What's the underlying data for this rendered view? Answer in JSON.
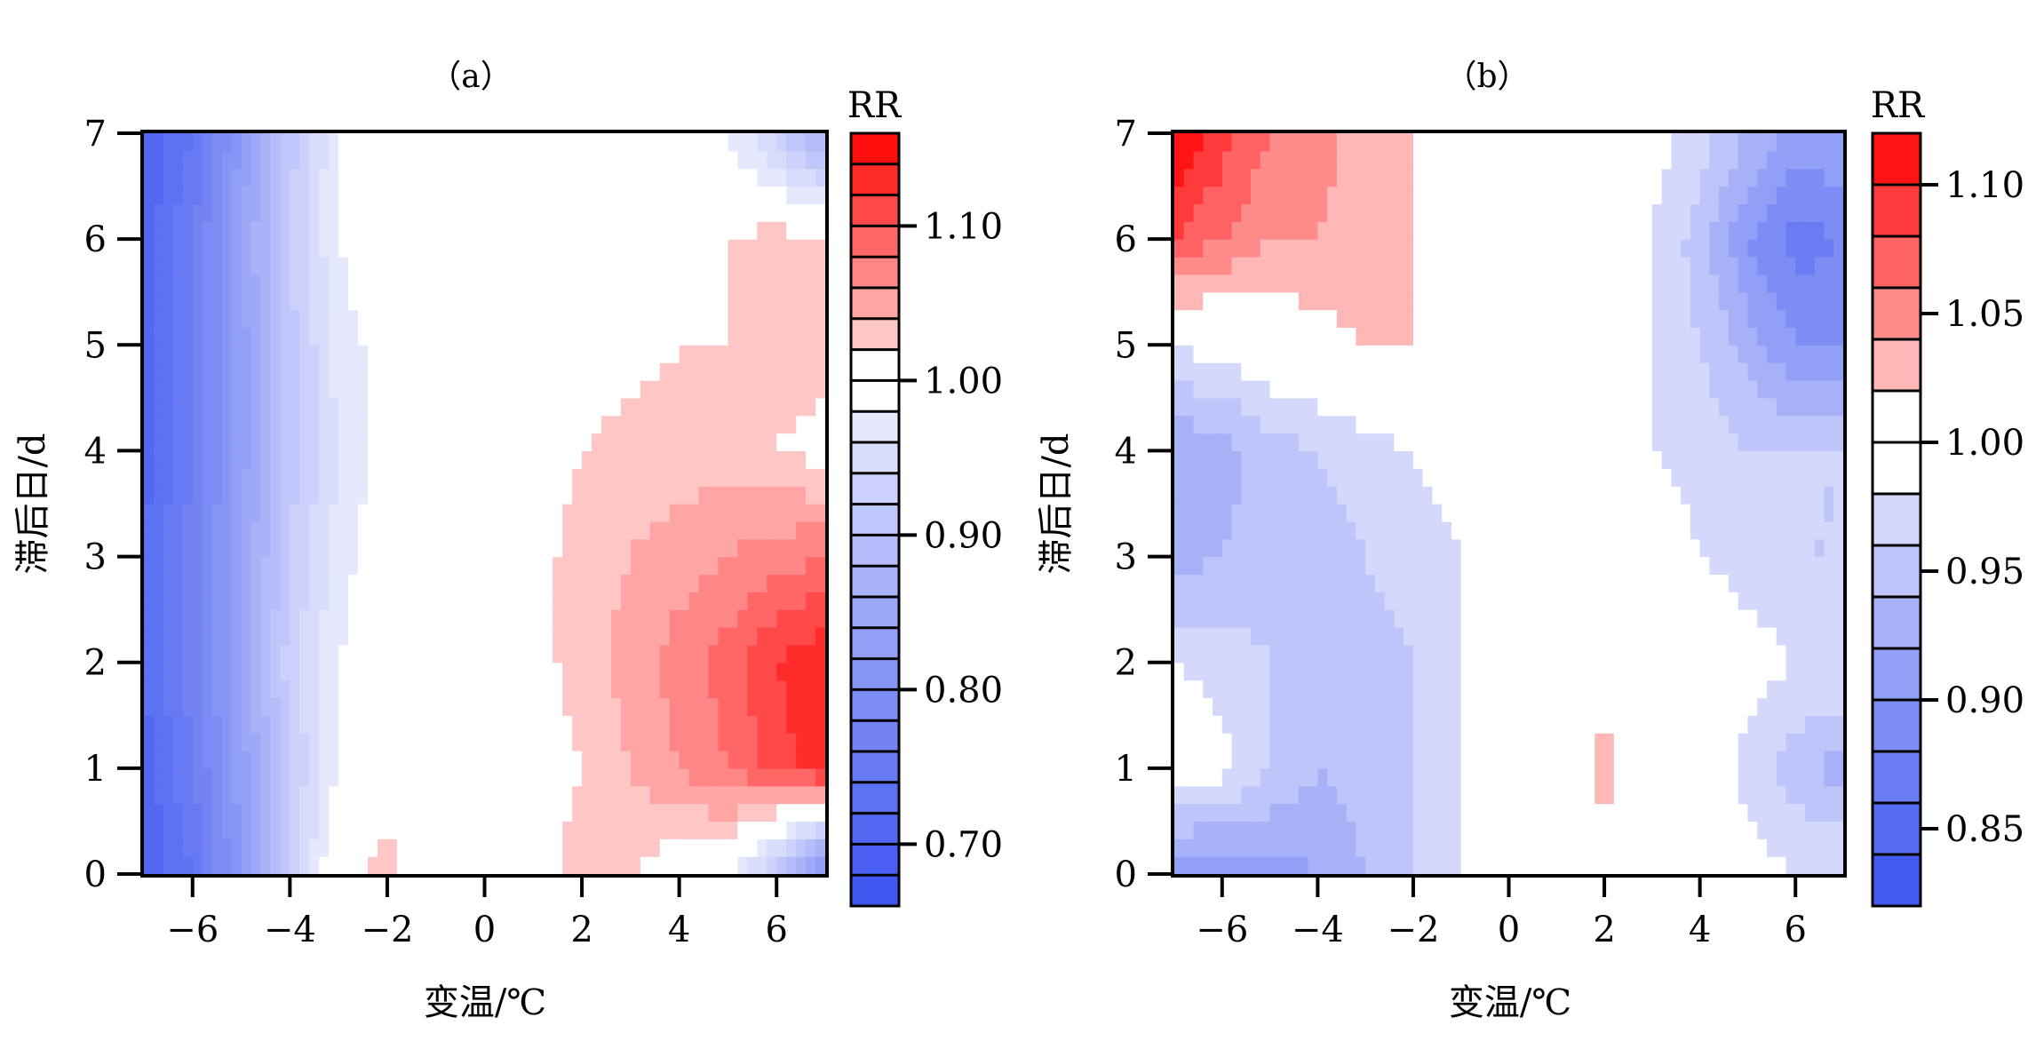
{
  "chart_data": [
    {
      "type": "heatmap",
      "title": "（a）",
      "xlabel": "变温/℃",
      "ylabel": "滞后日/d",
      "xlim": [
        -7,
        7
      ],
      "ylim": [
        0,
        7
      ],
      "xticks": [
        -6,
        -4,
        -2,
        0,
        2,
        4,
        6
      ],
      "xtick_labels": [
        "−6",
        "−4",
        "−2",
        "0",
        "2",
        "4",
        "6"
      ],
      "yticks": [
        0,
        1,
        2,
        3,
        4,
        5,
        6,
        7
      ],
      "ytick_labels": [
        "0",
        "1",
        "2",
        "3",
        "4",
        "5",
        "6",
        "7"
      ],
      "x": [
        -7,
        -6,
        -5,
        -4,
        -3,
        -2,
        -1,
        0,
        1,
        2,
        3,
        4,
        5,
        6,
        7
      ],
      "y": [
        0,
        1,
        2,
        3,
        4,
        5,
        6,
        7
      ],
      "z": [
        [
          0.7,
          0.74,
          0.82,
          0.92,
          1.01,
          1.03,
          1.0,
          1.0,
          1.01,
          1.03,
          1.02,
          1.0,
          0.99,
          0.9,
          0.78
        ],
        [
          0.71,
          0.76,
          0.83,
          0.92,
          0.98,
          1.0,
          1.0,
          1.0,
          1.01,
          1.02,
          1.04,
          1.06,
          1.08,
          1.11,
          1.13
        ],
        [
          0.72,
          0.77,
          0.84,
          0.93,
          0.98,
          1.0,
          1.0,
          1.0,
          1.01,
          1.03,
          1.05,
          1.07,
          1.09,
          1.12,
          1.14
        ],
        [
          0.72,
          0.77,
          0.84,
          0.92,
          0.97,
          1.0,
          1.0,
          1.0,
          1.01,
          1.03,
          1.04,
          1.05,
          1.06,
          1.07,
          1.08
        ],
        [
          0.71,
          0.76,
          0.83,
          0.91,
          0.96,
          0.99,
          1.0,
          1.0,
          1.01,
          1.02,
          1.03,
          1.03,
          1.03,
          1.02,
          1.01
        ],
        [
          0.71,
          0.76,
          0.83,
          0.91,
          0.97,
          0.99,
          1.0,
          1.0,
          1.0,
          1.0,
          1.01,
          1.02,
          1.02,
          1.03,
          1.03
        ],
        [
          0.71,
          0.76,
          0.84,
          0.92,
          0.98,
          1.0,
          1.0,
          1.0,
          1.0,
          0.99,
          1.0,
          1.01,
          1.02,
          1.03,
          1.03
        ],
        [
          0.7,
          0.74,
          0.82,
          0.91,
          0.98,
          1.0,
          1.0,
          1.0,
          1.01,
          1.02,
          1.0,
          1.0,
          0.98,
          0.93,
          0.86
        ]
      ],
      "colorbar": {
        "label": "RR",
        "ticks": [
          0.7,
          0.8,
          0.9,
          1.0,
          1.1
        ],
        "tick_labels": [
          "0.70",
          "0.80",
          "0.90",
          "1.00",
          "1.10"
        ],
        "levels": [
          0.66,
          0.68,
          0.7,
          0.72,
          0.74,
          0.76,
          0.78,
          0.8,
          0.82,
          0.84,
          0.86,
          0.88,
          0.9,
          0.92,
          0.94,
          0.96,
          0.98,
          1.0,
          1.02,
          1.04,
          1.06,
          1.08,
          1.1,
          1.12,
          1.14,
          1.16
        ],
        "low_color": "#3a52f0",
        "mid_color": "#ffffff",
        "high_color": "#ff0000",
        "mid_value": 1.0,
        "vmin": 0.66,
        "vmax": 1.16
      }
    },
    {
      "type": "heatmap",
      "title": "（b）",
      "xlabel": "变温/℃",
      "ylabel": "滞后日/d",
      "xlim": [
        -7,
        7
      ],
      "ylim": [
        0,
        7
      ],
      "xticks": [
        -6,
        -4,
        -2,
        0,
        2,
        4,
        6
      ],
      "xtick_labels": [
        "−6",
        "−4",
        "−2",
        "0",
        "2",
        "4",
        "6"
      ],
      "yticks": [
        0,
        1,
        2,
        3,
        4,
        5,
        6,
        7
      ],
      "ytick_labels": [
        "0",
        "1",
        "2",
        "3",
        "4",
        "5",
        "6",
        "7"
      ],
      "x": [
        -7,
        -6,
        -5,
        -4,
        -3,
        -2,
        -1,
        0,
        1,
        2,
        3,
        4,
        5,
        6,
        7
      ],
      "y": [
        0,
        1,
        2,
        3,
        4,
        5,
        6,
        7
      ],
      "z": [
        [
          0.9,
          0.9,
          0.91,
          0.92,
          0.94,
          0.96,
          0.98,
          1.0,
          1.0,
          1.0,
          1.0,
          1.0,
          0.99,
          0.98,
          0.98
        ],
        [
          1.0,
          0.99,
          0.96,
          0.94,
          0.95,
          0.96,
          0.98,
          1.0,
          1.0,
          1.03,
          1.0,
          1.0,
          0.97,
          0.95,
          0.93
        ],
        [
          0.98,
          0.97,
          0.96,
          0.95,
          0.95,
          0.96,
          0.98,
          1.0,
          1.0,
          1.0,
          1.0,
          1.0,
          0.99,
          0.98,
          0.98
        ],
        [
          0.93,
          0.94,
          0.95,
          0.95,
          0.96,
          0.97,
          0.98,
          1.0,
          1.0,
          1.0,
          1.0,
          0.98,
          0.97,
          0.96,
          0.96
        ],
        [
          0.92,
          0.93,
          0.95,
          0.96,
          0.97,
          0.98,
          0.99,
          1.0,
          1.0,
          1.0,
          0.98,
          0.97,
          0.96,
          0.96,
          0.96
        ],
        [
          0.98,
          0.99,
          1.0,
          1.01,
          1.02,
          1.02,
          1.01,
          1.0,
          1.0,
          1.0,
          0.98,
          0.96,
          0.93,
          0.9,
          0.9
        ],
        [
          1.08,
          1.06,
          1.04,
          1.04,
          1.03,
          1.02,
          1.01,
          1.0,
          1.0,
          1.0,
          0.98,
          0.95,
          0.9,
          0.87,
          0.88
        ],
        [
          1.12,
          1.09,
          1.06,
          1.05,
          1.03,
          1.02,
          1.01,
          1.0,
          1.0,
          1.0,
          0.99,
          0.97,
          0.94,
          0.91,
          0.92
        ]
      ],
      "colorbar": {
        "label": "RR",
        "ticks": [
          0.85,
          0.9,
          0.95,
          1.0,
          1.05,
          1.1
        ],
        "tick_labels": [
          "0.85",
          "0.90",
          "0.95",
          "1.00",
          "1.05",
          "1.10"
        ],
        "levels": [
          0.82,
          0.84,
          0.86,
          0.88,
          0.9,
          0.92,
          0.94,
          0.96,
          0.98,
          1.0,
          1.02,
          1.04,
          1.06,
          1.08,
          1.1,
          1.12
        ],
        "low_color": "#3a52f0",
        "mid_color": "#ffffff",
        "high_color": "#ff0000",
        "mid_value": 1.0,
        "vmin": 0.82,
        "vmax": 1.12
      }
    }
  ]
}
